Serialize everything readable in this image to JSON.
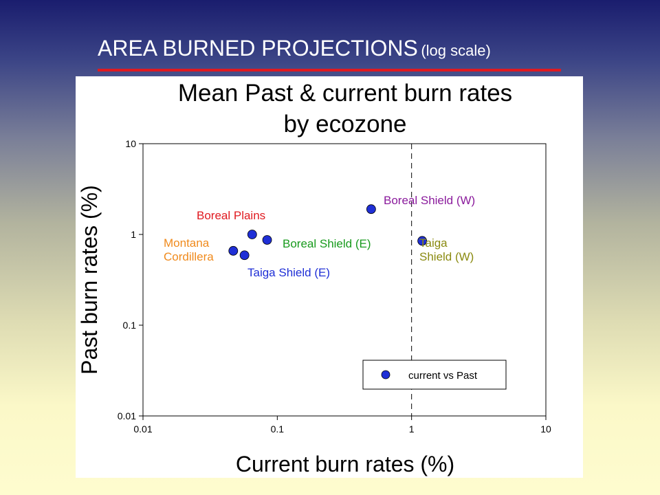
{
  "slide": {
    "title_main": "AREA BURNED PROJECTIONS",
    "title_sub": "(log scale)",
    "accent_color": "#e01a20"
  },
  "chart_data": {
    "type": "scatter",
    "title_line1": "Mean Past & current burn rates",
    "title_line2": "by ecozone",
    "xlabel": "Current burn rates (%)",
    "ylabel": "Past burn rates (%)",
    "x_scale": "log",
    "y_scale": "log",
    "xlim": [
      0.01,
      10
    ],
    "ylim": [
      0.01,
      10
    ],
    "x_ticks": [
      "0.01",
      "0.1",
      "1",
      "10"
    ],
    "y_ticks": [
      "0.01",
      "0.1",
      "1",
      "10"
    ],
    "grid": false,
    "reference_line": {
      "x": 1,
      "style": "dashed"
    },
    "legend": {
      "placement": "lower-right",
      "label": "current vs Past"
    },
    "marker_color": "#1f2fd6",
    "series": [
      {
        "name": "current vs Past",
        "points": [
          {
            "x": 0.047,
            "y": 0.66
          },
          {
            "x": 0.057,
            "y": 0.59
          },
          {
            "x": 0.065,
            "y": 1.0
          },
          {
            "x": 0.084,
            "y": 0.87
          },
          {
            "x": 0.5,
            "y": 1.9
          },
          {
            "x": 1.2,
            "y": 0.85
          }
        ]
      }
    ],
    "annotations": [
      {
        "lines": [
          "Boreal Plains"
        ],
        "color": "#e01a20"
      },
      {
        "lines": [
          "Montana",
          "Cordillera"
        ],
        "color": "#f08a1c"
      },
      {
        "lines": [
          "Boreal Shield (E)"
        ],
        "color": "#179a1c"
      },
      {
        "lines": [
          "Taiga Shield (E)"
        ],
        "color": "#1f2fd6"
      },
      {
        "lines": [
          "Boreal Shield (W)"
        ],
        "color": "#8a1a9c"
      },
      {
        "lines": [
          "Taiga",
          "Shield (W)"
        ],
        "color": "#8a8a10"
      }
    ]
  }
}
